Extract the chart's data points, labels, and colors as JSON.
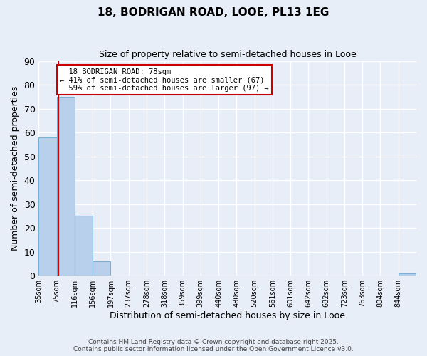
{
  "title": "18, BODRIGAN ROAD, LOOE, PL13 1EG",
  "subtitle": "Size of property relative to semi-detached houses in Looe",
  "xlabel": "Distribution of semi-detached houses by size in Looe",
  "ylabel": "Number of semi-detached properties",
  "bin_labels": [
    "35sqm",
    "75sqm",
    "116sqm",
    "156sqm",
    "197sqm",
    "237sqm",
    "278sqm",
    "318sqm",
    "359sqm",
    "399sqm",
    "440sqm",
    "480sqm",
    "520sqm",
    "561sqm",
    "601sqm",
    "642sqm",
    "682sqm",
    "723sqm",
    "763sqm",
    "804sqm",
    "844sqm"
  ],
  "bar_heights": [
    58,
    75,
    25,
    6,
    0,
    0,
    0,
    0,
    0,
    0,
    0,
    0,
    0,
    0,
    0,
    0,
    0,
    0,
    0,
    0,
    1
  ],
  "bar_color": "#b8d0eb",
  "bar_edge_color": "#7aafd4",
  "background_color": "#e8eef8",
  "grid_color": "#ffffff",
  "property_size_sqm": 78,
  "property_label": "18 BODRIGAN ROAD: 78sqm",
  "pct_smaller": 41,
  "n_smaller": 67,
  "pct_larger": 59,
  "n_larger": 97,
  "annotation_box_color": "#ffffff",
  "annotation_border_color": "#cc0000",
  "red_line_color": "#cc0000",
  "ylim": [
    0,
    90
  ],
  "yticks": [
    0,
    10,
    20,
    30,
    40,
    50,
    60,
    70,
    80,
    90
  ],
  "bin_starts": [
    35,
    75,
    116,
    156,
    197,
    237,
    278,
    318,
    359,
    399,
    440,
    480,
    520,
    561,
    601,
    642,
    682,
    723,
    763,
    804,
    844
  ],
  "footer_line1": "Contains HM Land Registry data © Crown copyright and database right 2025.",
  "footer_line2": "Contains public sector information licensed under the Open Government Licence v3.0."
}
